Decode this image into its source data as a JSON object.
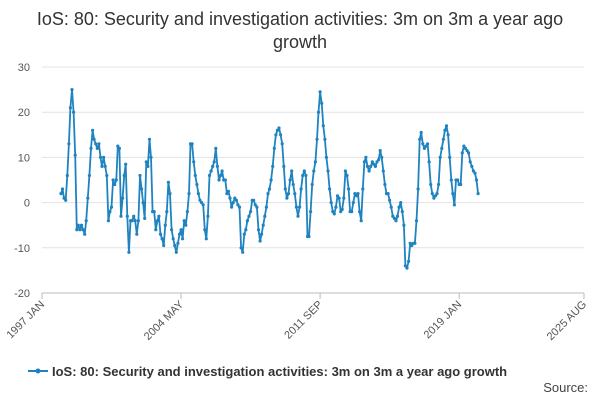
{
  "chart_data": {
    "type": "line",
    "title": "IoS: 80: Security and investigation activities: 3m on 3m a year ago growth",
    "xlabel": "",
    "ylabel": "",
    "x_tick_labels": [
      "1997 JAN",
      "2004 MAY",
      "2011 SEP",
      "2019 JAN",
      "2025 AUG"
    ],
    "y_ticks": [
      -20,
      -10,
      0,
      10,
      20,
      30
    ],
    "ylim": [
      -20,
      30
    ],
    "grid": true,
    "legend_position": "bottom",
    "x_start": "1998-01",
    "series": [
      {
        "name": "IoS: 80: Security and investigation activities: 3m on 3m a year ago growth",
        "color": "#1f83c0",
        "values": [
          2,
          3,
          1,
          0.5,
          6,
          13,
          21,
          25,
          20,
          10.5,
          -6,
          -5,
          -6,
          -5,
          -6,
          -7,
          -4,
          1,
          6,
          12,
          16,
          14,
          13,
          12,
          13,
          10,
          8,
          10,
          8,
          6,
          -4,
          -2,
          -1,
          5,
          4,
          5,
          12.5,
          12,
          -3,
          1,
          6,
          8.5,
          -3,
          -11,
          -4,
          -4,
          -3,
          -4,
          -7,
          -4,
          6,
          3,
          0,
          -3.5,
          9,
          8,
          14,
          10,
          -2,
          -2,
          -6,
          -4,
          -3,
          -7,
          -8,
          -9.5,
          -5,
          -2,
          4.5,
          2,
          -6,
          -8,
          -9.5,
          -11,
          -9,
          -7,
          -6,
          -8,
          -4,
          -5,
          -2,
          2,
          13,
          13,
          9,
          6,
          4,
          2,
          0.5,
          0,
          -0.5,
          -6,
          -8,
          -3,
          6,
          7,
          8,
          9,
          12,
          8,
          5,
          6,
          7,
          5,
          5,
          2,
          2.5,
          1,
          -1,
          0,
          1,
          0.5,
          -0.5,
          -1,
          -10,
          -11,
          -7,
          -6,
          -4,
          -3,
          -2,
          0.5,
          0.5,
          -0.5,
          -1,
          -6,
          -8.5,
          -7,
          -5,
          -3,
          -1,
          2,
          3,
          5,
          8,
          12,
          15,
          16,
          16.5,
          15,
          13,
          8,
          3,
          1,
          2,
          5,
          7,
          4,
          2,
          -1,
          -3,
          -1,
          3,
          6,
          7,
          6,
          -7.5,
          -7.5,
          -2,
          4,
          7,
          9,
          14,
          20,
          24.5,
          22,
          17,
          14,
          10,
          7,
          3,
          0,
          -2,
          -2.5,
          -1,
          1.5,
          1,
          -2,
          -1.5,
          1,
          7,
          6,
          3,
          -2,
          -2,
          0,
          2,
          1.5,
          2,
          -2,
          -4,
          3,
          9,
          10,
          8,
          7,
          8,
          9,
          8.5,
          8,
          9,
          9.5,
          11.5,
          10,
          7,
          4,
          2,
          2,
          0.5,
          -1,
          -3,
          -3.5,
          -4,
          -3,
          -1,
          0,
          -2,
          -5,
          -14,
          -14.5,
          -13,
          -9,
          -9.5,
          -9,
          -9,
          -4,
          3,
          14,
          15.5,
          13,
          12,
          12.5,
          13,
          9,
          4,
          2,
          1,
          1.5,
          2,
          4,
          10,
          12,
          14,
          16,
          17,
          15,
          10,
          5,
          2,
          -0.5,
          5,
          5,
          4,
          4,
          11,
          12.5,
          12,
          11.5,
          11,
          9,
          8,
          7,
          6.5,
          5,
          2
        ]
      }
    ]
  },
  "source_label": "Source:"
}
